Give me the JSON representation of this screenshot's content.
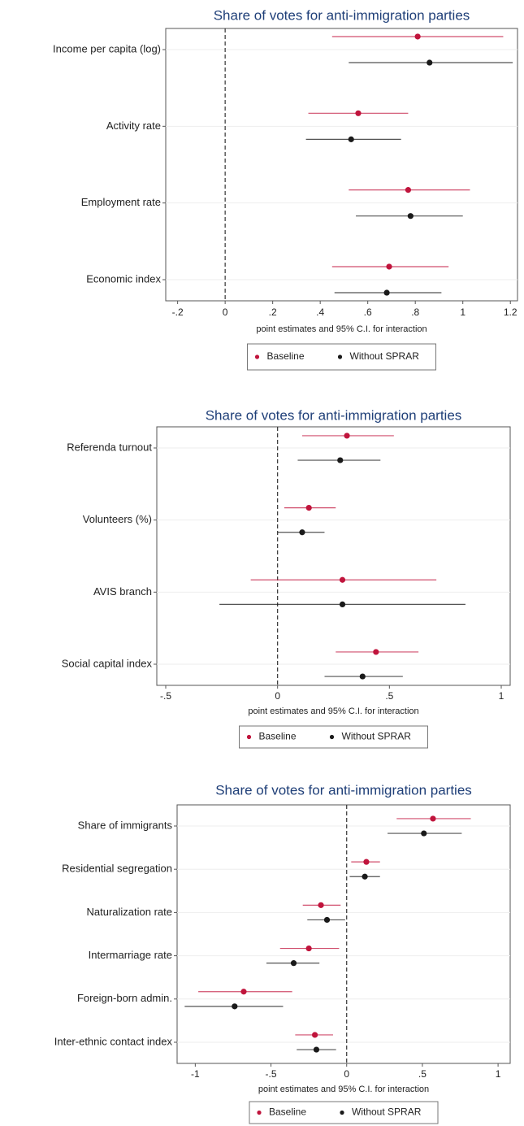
{
  "chart_data": [
    {
      "type": "errorbar",
      "title": "Share of votes for anti-immigration parties",
      "categories": [
        "Income per capita (log)",
        "Activity rate",
        "Employment rate",
        "Economic index"
      ],
      "series": [
        {
          "name": "Baseline",
          "color": "#c0143c",
          "values": [
            0.81,
            0.56,
            0.77,
            0.69
          ],
          "low": [
            0.45,
            0.35,
            0.52,
            0.45
          ],
          "high": [
            1.17,
            0.77,
            1.03,
            0.94
          ]
        },
        {
          "name": "Without SPRAR",
          "color": "#1a1a1a",
          "values": [
            0.86,
            0.53,
            0.78,
            0.68
          ],
          "low": [
            0.52,
            0.34,
            0.55,
            0.46
          ],
          "high": [
            1.21,
            0.74,
            1.0,
            0.91
          ]
        }
      ],
      "xlim": [
        -0.25,
        1.23
      ],
      "xticks": [
        {
          "value": -0.2,
          "label": "-.2"
        },
        0,
        {
          "value": 0.2,
          "label": ".2"
        },
        {
          "value": 0.4,
          "label": ".4"
        },
        {
          "value": 0.6,
          "label": ".6"
        },
        {
          "value": 0.8,
          "label": ".8"
        },
        1,
        1.2
      ],
      "xlabel": "point estimates and 95% C.I. for interaction",
      "refline": 0,
      "grid": true
    },
    {
      "type": "errorbar",
      "title": "Share of votes for anti-immigration parties",
      "categories": [
        "Referenda turnout",
        "Volunteers (%)",
        "AVIS branch",
        "Social capital index"
      ],
      "series": [
        {
          "name": "Baseline",
          "color": "#c0143c",
          "values": [
            0.31,
            0.14,
            0.29,
            0.44
          ],
          "low": [
            0.11,
            0.03,
            -0.12,
            0.26
          ],
          "high": [
            0.52,
            0.26,
            0.71,
            0.63
          ]
        },
        {
          "name": "Without SPRAR",
          "color": "#1a1a1a",
          "values": [
            0.28,
            0.11,
            0.29,
            0.38
          ],
          "low": [
            0.09,
            0.0,
            -0.26,
            0.21
          ],
          "high": [
            0.46,
            0.21,
            0.84,
            0.56
          ]
        }
      ],
      "xlim": [
        -0.54,
        1.04
      ],
      "xticks": [
        {
          "value": -0.5,
          "label": "-.5"
        },
        0,
        {
          "value": 0.5,
          "label": ".5"
        },
        1
      ],
      "xlabel": "point estimates and 95% C.I. for interaction",
      "refline": 0,
      "grid": true
    },
    {
      "type": "errorbar",
      "title": "Share of votes for anti-immigration parties",
      "categories": [
        "Share of immigrants",
        "Residential segregation",
        "Naturalization rate",
        "Intermarriage rate",
        "Foreign-born admin.",
        "Inter-ethnic contact index"
      ],
      "series": [
        {
          "name": "Baseline",
          "color": "#c0143c",
          "values": [
            0.57,
            0.13,
            -0.17,
            -0.25,
            -0.68,
            -0.21
          ],
          "low": [
            0.33,
            0.03,
            -0.29,
            -0.44,
            -0.98,
            -0.34
          ],
          "high": [
            0.82,
            0.22,
            -0.04,
            -0.05,
            -0.36,
            -0.09
          ]
        },
        {
          "name": "Without SPRAR",
          "color": "#1a1a1a",
          "values": [
            0.51,
            0.12,
            -0.13,
            -0.35,
            -0.74,
            -0.2
          ],
          "low": [
            0.27,
            0.02,
            -0.26,
            -0.53,
            -1.07,
            -0.33
          ],
          "high": [
            0.76,
            0.22,
            -0.01,
            -0.18,
            -0.42,
            -0.07
          ]
        }
      ],
      "xlim": [
        -1.12,
        1.08
      ],
      "xticks": [
        -1,
        {
          "value": -0.5,
          "label": "-.5"
        },
        0,
        {
          "value": 0.5,
          "label": ".5"
        },
        1
      ],
      "xlabel": "point estimates and 95% C.I. for interaction",
      "refline": 0,
      "grid": true
    }
  ]
}
